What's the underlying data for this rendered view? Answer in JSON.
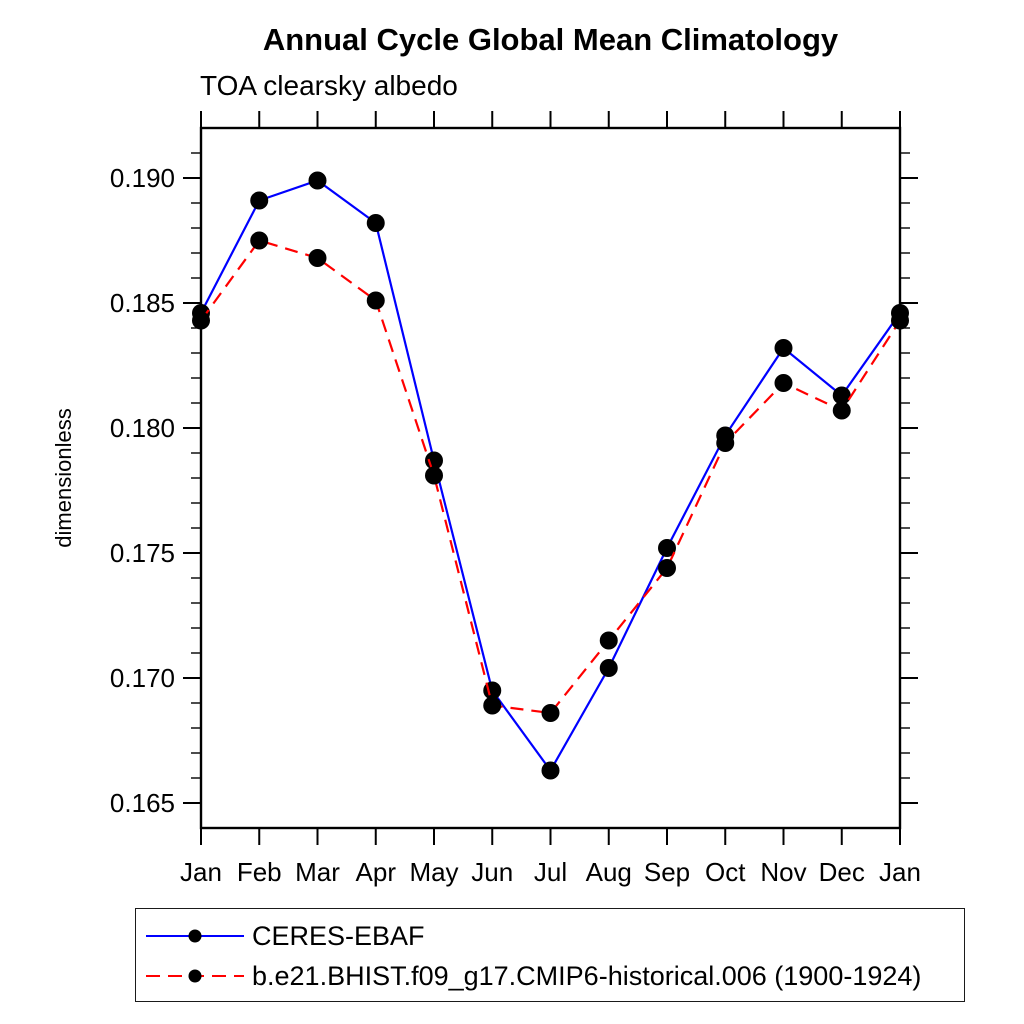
{
  "page": {
    "background": "#ffffff",
    "text_color": "#000000"
  },
  "chart_data": {
    "type": "line",
    "title": "Annual Cycle Global Mean Climatology",
    "subtitle": "TOA clearsky albedo",
    "xlabel": "",
    "ylabel": "dimensionless",
    "categories": [
      "Jan",
      "Feb",
      "Mar",
      "Apr",
      "May",
      "Jun",
      "Jul",
      "Aug",
      "Sep",
      "Oct",
      "Nov",
      "Dec",
      "Jan"
    ],
    "series": [
      {
        "name": "CERES-EBAF",
        "color": "#0000ff",
        "line_style": "solid",
        "marker": "filled-circle",
        "marker_color": "#000000",
        "values": [
          0.1846,
          0.1891,
          0.1899,
          0.1882,
          0.1787,
          0.1695,
          0.1663,
          0.1704,
          0.1752,
          0.1797,
          0.1832,
          0.1813,
          0.1846
        ]
      },
      {
        "name": "b.e21.BHIST.f09_g17.CMIP6-historical.006 (1900-1924)",
        "color": "#ff0000",
        "line_style": "dashed",
        "marker": "filled-circle",
        "marker_color": "#000000",
        "values": [
          0.1843,
          0.1875,
          0.1868,
          0.1851,
          0.1781,
          0.1689,
          0.1686,
          0.1715,
          0.1744,
          0.1794,
          0.1818,
          0.1807,
          0.1843
        ]
      }
    ],
    "ylim": [
      0.164,
      0.192
    ],
    "yticks_major": {
      "values": [
        0.165,
        0.17,
        0.175,
        0.18,
        0.185,
        0.19
      ],
      "labels": [
        "0.165",
        "0.170",
        "0.175",
        "0.180",
        "0.185",
        "0.190"
      ]
    },
    "ytick_minor_step": 0.001,
    "grid": false,
    "axis_color": "#000000",
    "legend_position": "below-plot-left",
    "tick_direction": "out"
  }
}
